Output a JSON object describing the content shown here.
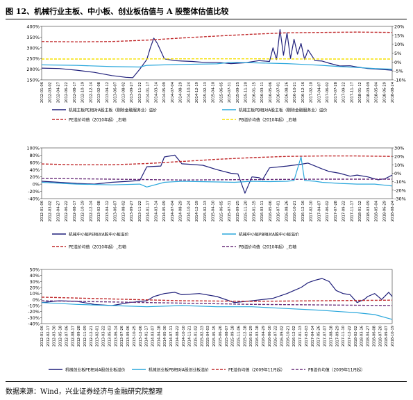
{
  "figure": {
    "title": "图 12、机械行业主板、中小板、创业板估值与 A 股整体估值比较",
    "source": "数据来源：Wind，兴业证券经济与金融研究院整理"
  },
  "chart_data": [
    {
      "type": "line",
      "panel": "top",
      "title": "",
      "y_left": {
        "ticks": [
          "400%",
          "350%",
          "300%",
          "250%",
          "200%",
          "150%"
        ],
        "range": [
          150,
          400
        ]
      },
      "y_right": {
        "ticks": [
          "20%",
          "15%",
          "10%",
          "5%",
          "0%",
          "-5%",
          "-10%"
        ],
        "range": [
          -10,
          20
        ]
      },
      "x_ticks": [
        "2012-01-06",
        "2012-03-02",
        "2012-04-27",
        "2012-06-22",
        "2012-08-17",
        "2012-10-19",
        "2012-12-14",
        "2013-02-08",
        "2013-04-12",
        "2013-06-07",
        "2013-08-02",
        "2013-09-27",
        "2013-11-22",
        "2014-01-17",
        "2014-03-14",
        "2014-05-09",
        "2014-07-04",
        "2014-08-29",
        "2014-10-24",
        "2014-12-19",
        "2015-02-13",
        "2015-04-10",
        "2015-06-05",
        "2015-07-31",
        "2015-09-25",
        "2015-11-20",
        "2016-01-15",
        "2016-03-11",
        "2016-05-06",
        "2016-07-01",
        "2016-08-26",
        "2016-10-21",
        "2016-12-16",
        "2017-02-10",
        "2017-04-07",
        "2017-06-02",
        "2017-07-28",
        "2017-09-22",
        "2017-11-17",
        "2018-01-12",
        "2018-03-09",
        "2018-05-04",
        "2018-06-29",
        "2018-08-24"
      ],
      "series": [
        {
          "name": "机械主板PE相对A股主板（剔除金融服务业）溢价",
          "axis": "left",
          "color": "#1f1f7a",
          "style": "solid",
          "x": [
            0,
            0.05,
            0.1,
            0.15,
            0.2,
            0.24,
            0.26,
            0.28,
            0.3,
            0.31,
            0.32,
            0.33,
            0.35,
            0.38,
            0.4,
            0.43,
            0.46,
            0.5,
            0.54,
            0.58,
            0.62,
            0.65,
            0.66,
            0.67,
            0.68,
            0.69,
            0.7,
            0.71,
            0.72,
            0.73,
            0.74,
            0.75,
            0.76,
            0.78,
            0.8,
            0.82,
            0.85,
            0.88,
            0.9,
            0.93,
            0.96,
            1.0
          ],
          "y": [
            205,
            203,
            195,
            185,
            170,
            162,
            160,
            200,
            245,
            300,
            345,
            320,
            248,
            240,
            238,
            236,
            232,
            232,
            226,
            230,
            240,
            236,
            300,
            245,
            385,
            265,
            370,
            250,
            340,
            270,
            320,
            245,
            290,
            240,
            238,
            228,
            215,
            216,
            210,
            203,
            200,
            195
          ]
        },
        {
          "name": "机械主板PB相对A股主板（剔除金融服务业）溢价",
          "axis": "left",
          "color": "#2aa7dc",
          "style": "solid",
          "x": [
            0,
            0.1,
            0.2,
            0.28,
            0.3,
            0.35,
            0.4,
            0.5,
            0.54,
            0.6,
            0.65,
            0.7,
            0.75,
            0.8,
            0.85,
            0.9,
            0.95,
            1.0
          ],
          "y": [
            220,
            218,
            212,
            210,
            218,
            220,
            222,
            225,
            232,
            230,
            228,
            226,
            222,
            218,
            212,
            208,
            203,
            200
          ]
        },
        {
          "name": "PE溢价均值（2010年起）_右轴",
          "axis": "right",
          "color": "#c0282a",
          "style": "dashed",
          "x": [
            0,
            0.1,
            0.2,
            0.3,
            0.4,
            0.5,
            0.6,
            0.7,
            0.8,
            0.9,
            1.0
          ],
          "y": [
            11.5,
            11.3,
            11.5,
            12.3,
            13.5,
            14.6,
            15.6,
            16.4,
            16.6,
            16.8,
            16.6
          ]
        },
        {
          "name": "PB溢价均值（2010年起）_右轴",
          "axis": "right",
          "color": "#f5e000",
          "style": "dashed",
          "x": [
            0,
            0.2,
            0.4,
            0.6,
            0.8,
            1.0
          ],
          "y": [
            1.7,
            1.7,
            1.8,
            1.8,
            1.7,
            1.7
          ]
        }
      ],
      "legend": [
        "机械主板PE相对A股主板（剔除金融服务业）溢价",
        "机械主板PB相对A股主板（剔除金融服务业）溢价",
        "PE溢价均值（2010年起）_右轴",
        "PB溢价均值（2010年起）_右轴"
      ]
    },
    {
      "type": "line",
      "panel": "middle",
      "title": "",
      "y_left": {
        "ticks": [
          "100%",
          "80%",
          "60%",
          "40%",
          "20%",
          "0%",
          "-20%",
          "-40%"
        ],
        "range": [
          -40,
          100
        ]
      },
      "y_right": {
        "ticks": [
          "30%",
          "20%",
          "10%",
          "0%",
          "-10%",
          "-20%",
          "-30%"
        ],
        "range": [
          -30,
          30
        ]
      },
      "x_ticks": [
        "2012-01-06",
        "2012-03-02",
        "2012-04-27",
        "2012-06-22",
        "2012-08-17",
        "2012-10-19",
        "2012-12-14",
        "2013-02-08",
        "2013-04-12",
        "2013-06-07",
        "2013-08-02",
        "2013-09-27",
        "2013-11-22",
        "2014-01-17",
        "2014-03-14",
        "2014-05-09",
        "2014-07-04",
        "2014-08-29",
        "2014-10-24",
        "2014-12-19",
        "2015-02-13",
        "2015-04-10",
        "2015-06-05",
        "2015-07-31",
        "2015-09-25",
        "2015-11-20",
        "2016-01-15",
        "2016-03-11",
        "2016-05-06",
        "2016-07-01",
        "2016-08-26",
        "2016-10-21",
        "2016-12-16",
        "2017-02-10",
        "2017-04-07",
        "2017-06-02",
        "2017-07-28",
        "2017-09-22",
        "2017-11-17",
        "2018-01-12",
        "2018-03-09",
        "2018-05-04",
        "2018-06-29",
        "2018-08-24"
      ],
      "series": [
        {
          "name": "机械中小板PE相对A股中小板溢价",
          "axis": "left",
          "color": "#1f1f7a",
          "style": "solid",
          "x": [
            0,
            0.05,
            0.1,
            0.15,
            0.2,
            0.25,
            0.28,
            0.3,
            0.34,
            0.35,
            0.38,
            0.4,
            0.42,
            0.46,
            0.5,
            0.54,
            0.56,
            0.58,
            0.6,
            0.62,
            0.63,
            0.65,
            0.7,
            0.74,
            0.76,
            0.78,
            0.8,
            0.82,
            0.85,
            0.88,
            0.9,
            0.93,
            0.96,
            0.98,
            1.0
          ],
          "y": [
            8,
            5,
            2,
            0,
            5,
            8,
            10,
            48,
            50,
            75,
            80,
            56,
            55,
            52,
            40,
            30,
            28,
            -25,
            20,
            18,
            12,
            45,
            50,
            55,
            58,
            50,
            42,
            35,
            30,
            22,
            25,
            20,
            12,
            15,
            25
          ]
        },
        {
          "name": "机械中小板PB相对A股中小板溢价",
          "axis": "left",
          "color": "#2aa7dc",
          "style": "solid",
          "x": [
            0,
            0.1,
            0.2,
            0.28,
            0.3,
            0.35,
            0.4,
            0.5,
            0.55,
            0.6,
            0.65,
            0.7,
            0.72,
            0.74,
            0.75,
            0.78,
            0.8,
            0.85,
            0.9,
            0.95,
            1.0
          ],
          "y": [
            5,
            0,
            -2,
            0,
            -8,
            5,
            8,
            6,
            5,
            8,
            7,
            8,
            10,
            75,
            10,
            8,
            5,
            2,
            0,
            0,
            -5
          ]
        },
        {
          "name": "PE溢价均值（2010年起）_右轴",
          "axis": "right",
          "color": "#c0282a",
          "style": "dashed",
          "x": [
            0,
            0.1,
            0.2,
            0.3,
            0.4,
            0.5,
            0.6,
            0.7,
            0.8,
            0.9,
            1.0
          ],
          "y": [
            11,
            10,
            10,
            11.5,
            14,
            16.5,
            18.5,
            20,
            20.5,
            20.5,
            20
          ]
        },
        {
          "name": "PB溢价均值（2010年起）_右轴",
          "axis": "right",
          "color": "#6a2f7a",
          "style": "dashed",
          "x": [
            0,
            0.2,
            0.4,
            0.6,
            0.8,
            1.0
          ],
          "y": [
            -6,
            -7,
            -8,
            -7.5,
            -7,
            -7
          ]
        }
      ],
      "legend": [
        "机械中小板PE相对A股中小板溢价",
        "机械中小板PB相对A股中小板溢价",
        "PE溢价均值（2010年起）_右轴",
        "PB溢价均值（2010年起）_右轴"
      ]
    },
    {
      "type": "line",
      "panel": "bottom",
      "title": "",
      "y_left": {
        "ticks": [
          "50%",
          "40%",
          "30%",
          "20%",
          "10%",
          "0%",
          "-10%",
          "-20%",
          "-30%",
          "-40%"
        ],
        "range": [
          -40,
          50
        ]
      },
      "x_ticks": [
        "2012-01-06",
        "2012-02-17",
        "2012-03-30",
        "2012-05-18",
        "2012-07-06",
        "2012-08-17",
        "2012-09-28",
        "2012-11-09",
        "2012-12-21",
        "2013-02-01",
        "2013-03-22",
        "2013-05-03",
        "2013-06-14",
        "2013-07-26",
        "2013-09-06",
        "2013-10-25",
        "2013-12-06",
        "2014-01-17",
        "2014-03-07",
        "2014-04-18",
        "2014-05-30",
        "2014-07-11",
        "2014-08-22",
        "2014-10-10",
        "2014-11-21",
        "2015-01-02",
        "2015-02-13",
        "2015-04-03",
        "2015-05-15",
        "2015-06-26",
        "2015-08-07",
        "2015-09-18",
        "2015-11-06",
        "2015-12-18",
        "2016-01-29",
        "2016-03-18",
        "2016-04-29",
        "2016-06-10",
        "2016-07-22",
        "2016-09-02",
        "2016-10-21",
        "2016-12-02",
        "2017-01-13",
        "2017-03-03",
        "2017-04-14",
        "2017-05-26",
        "2017-07-07",
        "2017-08-18",
        "2017-09-29",
        "2017-11-10",
        "2017-12-22",
        "2018-02-02",
        "2018-03-16",
        "2018-04-27",
        "2018-06-08",
        "2018-07-20",
        "2018-09-07",
        "2018-10-19"
      ],
      "series": [
        {
          "name": "机械创业板PE相对A股创业板溢价",
          "axis": "left",
          "color": "#1f1f7a",
          "style": "solid",
          "x": [
            0,
            0.05,
            0.1,
            0.15,
            0.2,
            0.25,
            0.3,
            0.32,
            0.35,
            0.38,
            0.4,
            0.45,
            0.5,
            0.55,
            0.6,
            0.63,
            0.66,
            0.7,
            0.72,
            0.74,
            0.76,
            0.78,
            0.8,
            0.82,
            0.84,
            0.86,
            0.88,
            0.9,
            0.92,
            0.93,
            0.95,
            0.97,
            0.99,
            1.0
          ],
          "y": [
            -5,
            -2,
            -3,
            -8,
            -10,
            -5,
            -2,
            5,
            10,
            12,
            8,
            10,
            5,
            -5,
            -2,
            0,
            2,
            10,
            15,
            20,
            28,
            32,
            35,
            30,
            15,
            10,
            8,
            -5,
            0,
            5,
            10,
            0,
            12,
            5
          ]
        },
        {
          "name": "机械创业板PB相对A股创业板溢价",
          "axis": "left",
          "color": "#2aa7dc",
          "style": "solid",
          "x": [
            0,
            0.1,
            0.2,
            0.3,
            0.4,
            0.5,
            0.6,
            0.7,
            0.8,
            0.85,
            0.9,
            0.95,
            1.0
          ],
          "y": [
            -5,
            -8,
            -10,
            -12,
            -10,
            -12,
            -12,
            -15,
            -18,
            -20,
            -22,
            -25,
            -33
          ]
        },
        {
          "name": "PE溢价均值（2009年11月起）",
          "axis": "left",
          "color": "#c0282a",
          "style": "dashed",
          "x": [
            0,
            0.2,
            0.4,
            0.6,
            0.8,
            1.0
          ],
          "y": [
            4,
            1,
            -2,
            -3,
            -2,
            -1
          ]
        },
        {
          "name": "PB溢价均值（2009年11月起）",
          "axis": "left",
          "color": "#6a2f7a",
          "style": "dashed",
          "x": [
            0,
            0.2,
            0.4,
            0.6,
            0.8,
            1.0
          ],
          "y": [
            -2,
            -4,
            -6,
            -8,
            -9,
            -10
          ]
        }
      ],
      "legend": [
        "机械创业板PE相对A股创业板溢价",
        "机械创业板PB相对A股创业板溢价",
        "PE溢价均值（2009年11月起）",
        "PB溢价均值（2009年11月起）"
      ]
    }
  ]
}
